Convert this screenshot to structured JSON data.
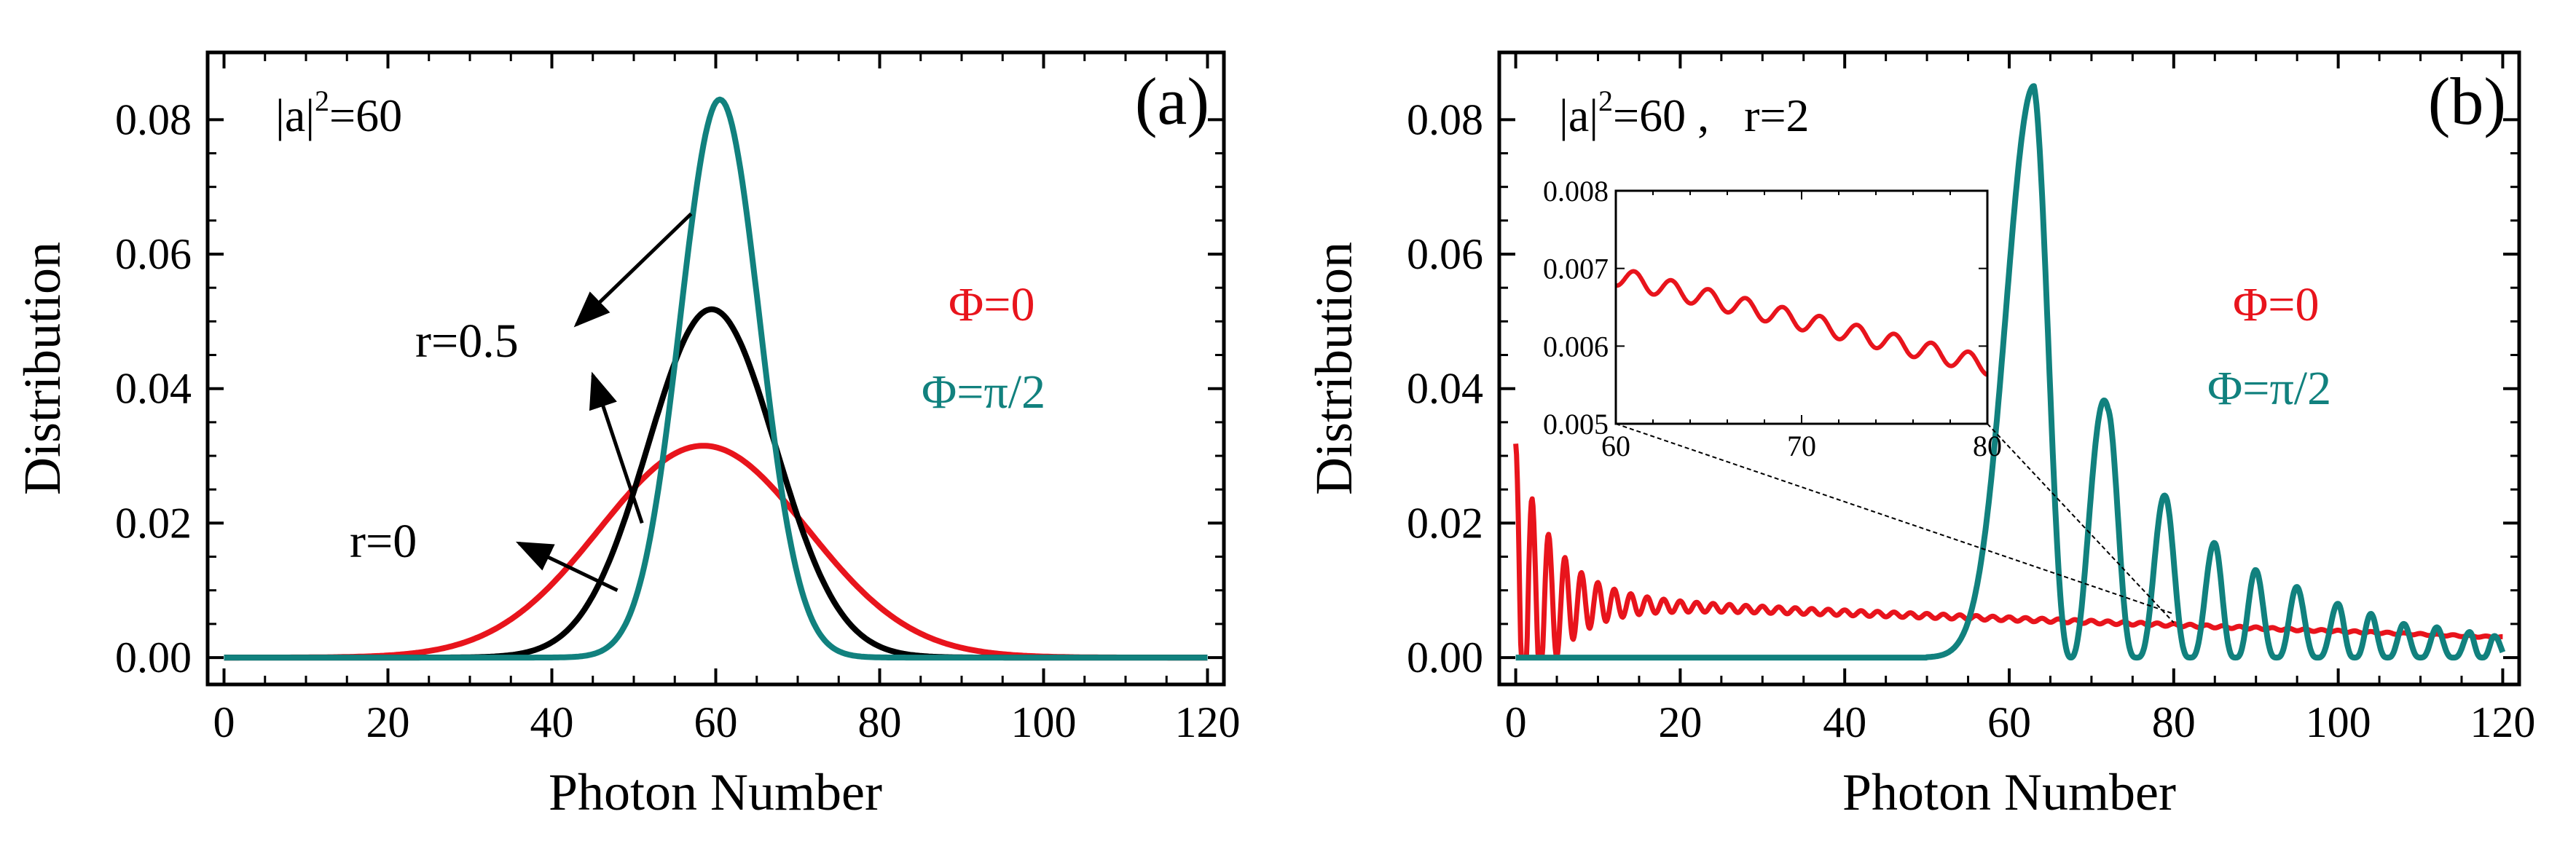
{
  "colors": {
    "red": "#e8141c",
    "teal": "#11817e",
    "black": "#000000",
    "frame": "#000000"
  },
  "chart_data": [
    {
      "panel": "a",
      "type": "line",
      "panel_label": "(a)",
      "param_text": {
        "base": "|a|",
        "sup": "2",
        "rest": "=60"
      },
      "xlabel": "Photon Number",
      "ylabel": "Distribution",
      "xlim": [
        -2,
        122
      ],
      "ylim": [
        -0.004,
        0.09
      ],
      "xticks": [
        0,
        20,
        40,
        60,
        80,
        100,
        120
      ],
      "xtick_labels": [
        "0",
        "20",
        "40",
        "60",
        "80",
        "100",
        "120"
      ],
      "yticks": [
        0.0,
        0.02,
        0.04,
        0.06,
        0.08
      ],
      "ytick_labels": [
        "0.00",
        "0.02",
        "0.04",
        "0.06",
        "0.08"
      ],
      "series": [
        {
          "name": "r=0",
          "color": "#e8141c",
          "shape": "gaussian",
          "mean": 58.5,
          "sigma": 12.7,
          "peak": 0.0315
        },
        {
          "name": "r=0.5 Φ=0",
          "color": "#000000",
          "shape": "gaussian",
          "mean": 59.5,
          "sigma": 7.8,
          "peak": 0.0518
        },
        {
          "name": "r=0.5 Φ=π/2",
          "color": "#11817e",
          "shape": "gaussian",
          "mean": 60.5,
          "sigma": 4.85,
          "peak": 0.083
        }
      ],
      "legend": [
        {
          "text": "Φ=0",
          "color": "#e8141c"
        },
        {
          "text": "Φ=π/2",
          "color": "#11817e"
        }
      ],
      "annotations": [
        {
          "text": "r=0.5",
          "arrows_to": [
            [
              43,
              0.063
            ],
            [
              40,
              0.034
            ]
          ]
        },
        {
          "text": "r=0",
          "arrows_to": [
            [
              47,
              0.012
            ]
          ]
        }
      ]
    },
    {
      "panel": "b",
      "type": "line",
      "panel_label": "(b)",
      "param_text": {
        "base": "|a|",
        "sup": "2",
        "rest": "=60 ,   r=2"
      },
      "xlabel": "Photon Number",
      "ylabel": "Distribution",
      "xlim": [
        -2,
        122
      ],
      "ylim": [
        -0.004,
        0.09
      ],
      "xticks": [
        0,
        20,
        40,
        60,
        80,
        100,
        120
      ],
      "xtick_labels": [
        "0",
        "20",
        "40",
        "60",
        "80",
        "100",
        "120"
      ],
      "yticks": [
        0.0,
        0.02,
        0.04,
        0.06,
        0.08
      ],
      "ytick_labels": [
        "0.00",
        "0.02",
        "0.04",
        "0.06",
        "0.08"
      ],
      "series": [
        {
          "name": "Φ=0",
          "color": "#e8141c",
          "shape": "decaying-oscillation",
          "x_range": [
            0,
            120
          ],
          "start": 0.031,
          "floor_start": 0.0085,
          "floor_end": 0.003,
          "period": 2
        },
        {
          "name": "Φ=π/2",
          "color": "#11817e",
          "shape": "oscillating-peaks",
          "peaks": [
            {
              "x": 63,
              "y": 0.085
            },
            {
              "x": 72,
              "y": 0.037
            },
            {
              "x": 79,
              "y": 0.024
            },
            {
              "x": 85,
              "y": 0.017
            },
            {
              "x": 90,
              "y": 0.013
            },
            {
              "x": 95,
              "y": 0.0105
            },
            {
              "x": 100,
              "y": 0.008
            },
            {
              "x": 104,
              "y": 0.0065
            },
            {
              "x": 108,
              "y": 0.005
            },
            {
              "x": 112,
              "y": 0.0045
            },
            {
              "x": 116,
              "y": 0.0038
            },
            {
              "x": 119,
              "y": 0.0032
            }
          ]
        }
      ],
      "legend": [
        {
          "text": "Φ=0",
          "color": "#e8141c"
        },
        {
          "text": "Φ=π/2",
          "color": "#11817e"
        }
      ],
      "inset": {
        "xlim": [
          60,
          80
        ],
        "ylim": [
          0.005,
          0.008
        ],
        "xticks": [
          60,
          70,
          80
        ],
        "xtick_labels": [
          "60",
          "70",
          "80"
        ],
        "yticks": [
          0.005,
          0.006,
          0.007,
          0.008
        ],
        "ytick_labels": [
          "0.005",
          "0.006",
          "0.007",
          "0.008"
        ],
        "series": {
          "name": "Φ=0 (zoom)",
          "color": "#e8141c",
          "start": 0.0069,
          "end": 0.00575,
          "amplitude": 0.00012,
          "period": 2
        }
      }
    }
  ]
}
